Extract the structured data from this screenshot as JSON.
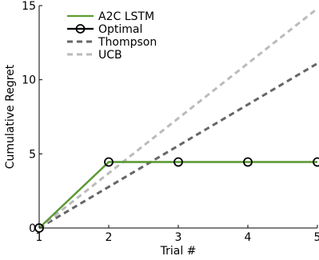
{
  "chart_data": {
    "type": "line",
    "xlabel": "Trial #",
    "ylabel": "Cumulative Regret",
    "xlim": [
      1,
      5
    ],
    "ylim": [
      0,
      15
    ],
    "x_ticks": [
      1,
      2,
      3,
      4,
      5
    ],
    "y_ticks": [
      0,
      5,
      10,
      15
    ],
    "grid": false,
    "legend_position": "top-left",
    "series": [
      {
        "name": "A2C LSTM",
        "x": [
          1,
          2,
          3,
          4,
          5
        ],
        "y": [
          0,
          4.45,
          4.45,
          4.45,
          4.45
        ],
        "color": "#5a9e2e",
        "style": "solid",
        "marker": "none"
      },
      {
        "name": "Optimal",
        "x": [
          1,
          2,
          3,
          4,
          5
        ],
        "y": [
          0,
          4.45,
          4.45,
          4.45,
          4.45
        ],
        "color": "#000000",
        "style": "solid",
        "marker": "circle"
      },
      {
        "name": "Thompson",
        "x": [
          1,
          5
        ],
        "y": [
          0,
          11.1
        ],
        "color": "#666666",
        "style": "dashed",
        "marker": "none"
      },
      {
        "name": "UCB",
        "x": [
          1,
          5
        ],
        "y": [
          0,
          14.8
        ],
        "color": "#bbbbbb",
        "style": "dashed",
        "marker": "none"
      }
    ]
  }
}
